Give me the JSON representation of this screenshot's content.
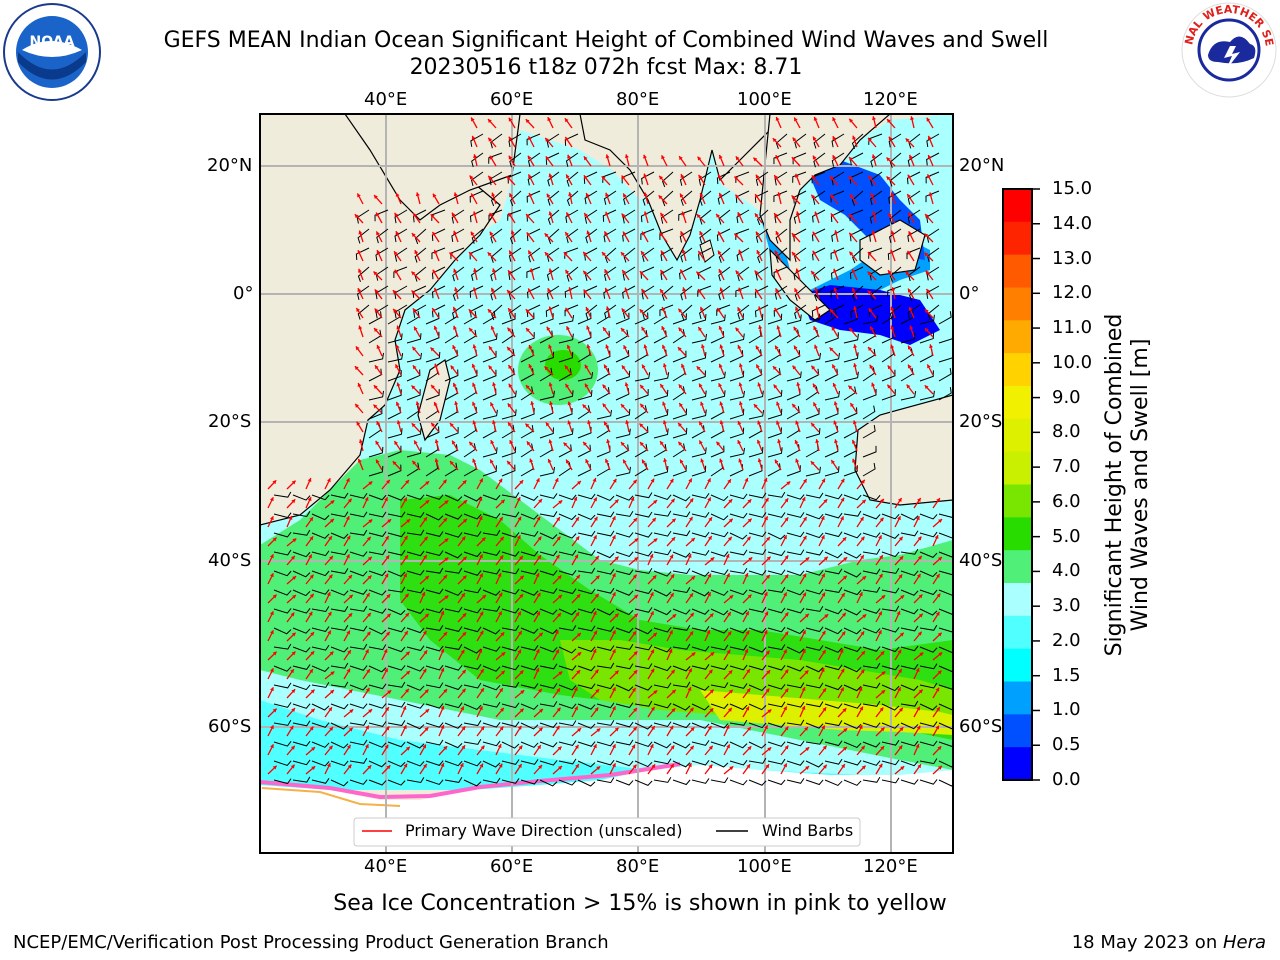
{
  "title": {
    "line1": "GEFS MEAN Indian Ocean Significant Height of Combined Wind Waves and Swell",
    "line2": "20230516 t18z 072h fcst   Max: 8.71"
  },
  "logos": {
    "left": {
      "text": "NOAA",
      "icon": "noaa-logo"
    },
    "right": {
      "text": "NATIONAL WEATHER SERVICE",
      "icon": "nws-logo"
    }
  },
  "map": {
    "lon_labels": [
      "40°E",
      "60°E",
      "80°E",
      "100°E",
      "120°E"
    ],
    "lat_labels": [
      "20°N",
      "0°",
      "20°S",
      "40°S",
      "60°S"
    ],
    "legend": {
      "wave_direction": "Primary Wave Direction (unscaled)",
      "wind_barbs": "Wind Barbs"
    },
    "colors": {
      "land": "#efecdc",
      "ocean_low": "#aaffff",
      "wave_arrow": "#ff0000",
      "barb": "#000000",
      "grid": "#b4b4b4"
    }
  },
  "colorbar": {
    "title_line1": "Significant Height of Combined",
    "title_line2": "Wind Waves and Swell [m]",
    "ticks": [
      "15.0",
      "14.0",
      "13.0",
      "12.0",
      "11.0",
      "10.0",
      "9.0",
      "8.0",
      "7.0",
      "6.0",
      "5.0",
      "4.0",
      "3.0",
      "2.0",
      "1.5",
      "1.0",
      "0.5",
      "0.0"
    ],
    "colors": [
      "#ff0000",
      "#ff2400",
      "#ff5a00",
      "#ff8000",
      "#ffaa00",
      "#ffd200",
      "#f0f000",
      "#dcf000",
      "#c8f000",
      "#78e600",
      "#28dc00",
      "#50f078",
      "#aaffff",
      "#50ffff",
      "#00ffff",
      "#00a0ff",
      "#0050ff",
      "#0000ff"
    ]
  },
  "note": "Sea Ice Concentration > 15% is shown in pink to yellow",
  "footer": {
    "left": "NCEP/EMC/Verification Post Processing Product Generation Branch",
    "right_prefix": "18 May 2023 on ",
    "right_italic": "Hera"
  }
}
